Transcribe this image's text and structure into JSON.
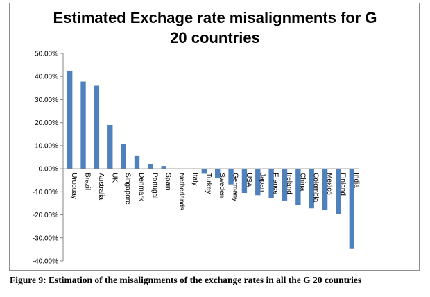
{
  "chart_data": {
    "type": "bar",
    "title_lines": [
      "Estimated Exchage rate misalignments for G",
      "20 countries"
    ],
    "categories": [
      "Uruguay",
      "Brazil",
      "Australia",
      "UK",
      "Singapore",
      "Denmark",
      "Portugal",
      "Spain",
      "Netherlands",
      "Italy",
      "Turkey",
      "Sweden",
      "Germany",
      "USA",
      "Japan",
      "France",
      "Ireland",
      "China",
      "Colombia",
      "Mexico",
      "Finland",
      "India"
    ],
    "values": [
      0.425,
      0.378,
      0.36,
      0.19,
      0.108,
      0.055,
      0.019,
      0.012,
      0.0,
      0.0,
      -0.022,
      -0.04,
      -0.068,
      -0.105,
      -0.115,
      -0.128,
      -0.138,
      -0.158,
      -0.172,
      -0.18,
      -0.198,
      -0.348
    ],
    "yticks": [
      "50.00%",
      "40.00%",
      "30.00%",
      "20.00%",
      "10.00%",
      "0.00%",
      "-10.00%",
      "-20.00%",
      "-30.00%",
      "-40.00%"
    ],
    "ylim": [
      -0.4,
      0.5
    ],
    "bar_color": "#4f81bd",
    "grid": false,
    "legend": "none"
  },
  "caption": "Figure 9: Estimation of the misalignments of the exchange rates in all the G 20 countries"
}
